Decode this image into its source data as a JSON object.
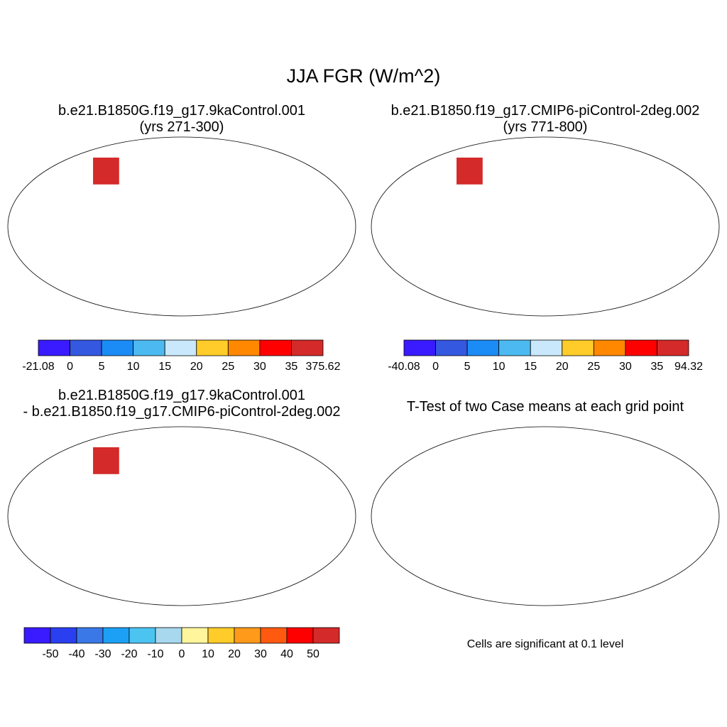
{
  "title": "JJA FGR (W/m^2)",
  "colors": {
    "land_fill_p1": "#2f7ce6",
    "land_fill_p2": "#2f7ce6",
    "land_fill_p3": "#fff59c",
    "land_fill_p4": "#ff0000",
    "coast": "#000000",
    "ocean": "#ffffff"
  },
  "panels": [
    {
      "id": "p1",
      "title_line1": "b.e21.B1850G.f19_g17.9kaControl.001",
      "title_line2": "(yrs 271-300)",
      "colorbar": {
        "colors": [
          "#3a1aff",
          "#3558e0",
          "#1b8cf5",
          "#4cbaf0",
          "#c9e8fb",
          "#ffcc29",
          "#ff8800",
          "#ff0000",
          "#d42a2a"
        ],
        "tick_labels": [
          "-21.08",
          "0",
          "5",
          "10",
          "15",
          "20",
          "25",
          "30",
          "35",
          "375.62"
        ]
      }
    },
    {
      "id": "p2",
      "title_line1": "b.e21.B1850.f19_g17.CMIP6-piControl-2deg.002",
      "title_line2": "(yrs 771-800)",
      "colorbar": {
        "colors": [
          "#3a1aff",
          "#3558e0",
          "#1b8cf5",
          "#4cbaf0",
          "#c9e8fb",
          "#ffcc29",
          "#ff8800",
          "#ff0000",
          "#d42a2a"
        ],
        "tick_labels": [
          "-40.08",
          "0",
          "5",
          "10",
          "15",
          "20",
          "25",
          "30",
          "35",
          "94.32"
        ]
      }
    },
    {
      "id": "p3",
      "title_line1": "b.e21.B1850G.f19_g17.9kaControl.001",
      "title_line2": "- b.e21.B1850.f19_g17.CMIP6-piControl-2deg.002",
      "colorbar": {
        "colors": [
          "#3a1aff",
          "#2a3ff0",
          "#3a78e8",
          "#1ca0f5",
          "#4cc4f2",
          "#a8d8ee",
          "#fff59c",
          "#ffcc29",
          "#ff9a1a",
          "#ff5a10",
          "#ff0000",
          "#d42a2a"
        ],
        "tick_labels": [
          "-50",
          "-40",
          "-30",
          "-20",
          "-10",
          "0",
          "10",
          "20",
          "30",
          "40",
          "50"
        ]
      }
    },
    {
      "id": "p4",
      "title_line1": "T-Test of two Case means at each grid point",
      "note": "Cells are significant at 0.1 level"
    }
  ]
}
